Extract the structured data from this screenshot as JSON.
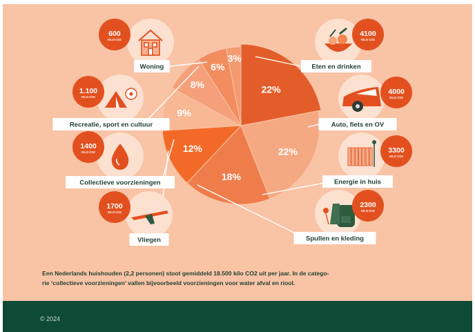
{
  "colors": {
    "panel": "#f9c3a5",
    "footer": "#0f4a37",
    "badge": "#e2501f",
    "icon_circle": "#fce0d0",
    "label_bg": "#ffffff",
    "label_text": "#1f3f33",
    "leader": "#ffffff"
  },
  "chart_data": {
    "type": "pie",
    "unit": "kilo CO2",
    "labels_text": [
      "3%",
      "22%",
      "22%",
      "18%",
      "12%",
      "9%",
      "8%",
      "6%"
    ],
    "categories": [
      {
        "name": "Woning",
        "percent": 3,
        "value": "600",
        "unit": "KILO CO2",
        "color": "#f39b70",
        "icon": "house-icon"
      },
      {
        "name": "Eten en drinken",
        "percent": 22,
        "value": "4100",
        "unit": "KILO CO2",
        "color": "#e35d2a",
        "icon": "food-basket-icon"
      },
      {
        "name": "Auto, fiets en OV",
        "percent": 22,
        "value": "4000",
        "unit": "KILO CO2",
        "color": "#f5a982",
        "icon": "car-icon"
      },
      {
        "name": "Energie in huis",
        "percent": 18,
        "value": "3300",
        "unit": "KILO CO2",
        "color": "#ef7d4c",
        "icon": "radiator-icon"
      },
      {
        "name": "Spullen en kleding",
        "percent": 12,
        "value": "2300",
        "unit": "KILO CO2",
        "color": "#f36a28",
        "icon": "backpack-icon"
      },
      {
        "name": "Vliegen",
        "percent": 9,
        "value": "1700",
        "unit": "KILO CO2",
        "color": "#f8b894",
        "icon": "airplane-icon"
      },
      {
        "name": "Collectieve voorzieningen",
        "percent": 8,
        "value": "1400",
        "unit": "KILO CO2",
        "color": "#f5a07a",
        "icon": "water-drop-icon"
      },
      {
        "name": "Recreatie, sport en cultuur",
        "percent": 6,
        "value": "1.100",
        "unit": "KILO CO2",
        "color": "#f28d60",
        "icon": "tent-ball-icon"
      }
    ]
  },
  "caption": {
    "line1": "Een Nederlands huishouden (2,2 personen) stoot gemiddeld 18.500 kilo CO2 uit per jaar. In de catego-",
    "line2": "rie ‘collectieve voorzieningen’ vallen bijvoorbeeld voorzieningen voor water afval en riool."
  },
  "footer": {
    "copyright": "© 2024"
  }
}
